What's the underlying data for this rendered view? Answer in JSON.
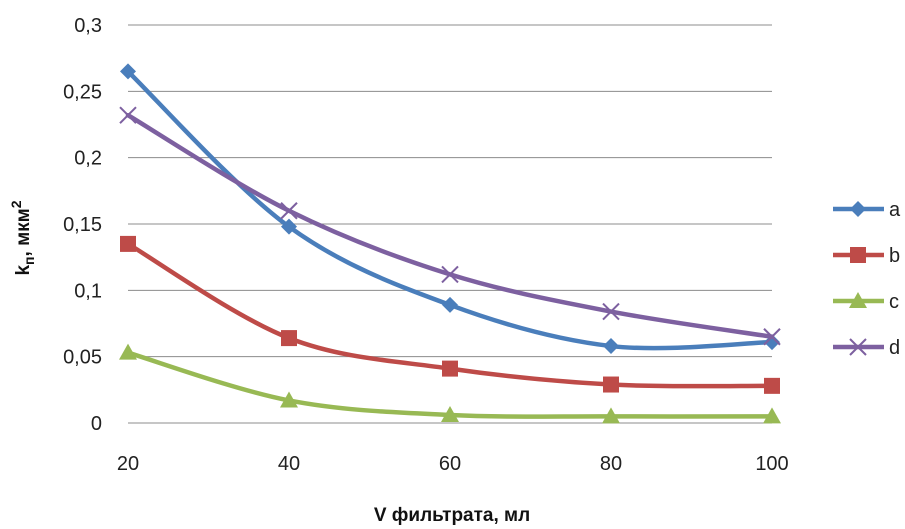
{
  "chart_data": {
    "type": "line",
    "title": "",
    "xlabel": "V фильтрата, мл",
    "ylabel_main": "k",
    "ylabel_sub": "п",
    "ylabel_rest": ", мкм",
    "ylabel_sup": "2",
    "x": [
      20,
      40,
      60,
      80,
      100
    ],
    "x_ticks": [
      "20",
      "40",
      "60",
      "80",
      "100"
    ],
    "y_ticks": [
      "0",
      "0,05",
      "0,1",
      "0,15",
      "0,2",
      "0,25",
      "0,3"
    ],
    "y_tick_values": [
      0,
      0.05,
      0.1,
      0.15,
      0.2,
      0.25,
      0.3
    ],
    "ylim": [
      0,
      0.3
    ],
    "grid": true,
    "legend_position": "right",
    "series": [
      {
        "name": "a",
        "values": [
          0.265,
          0.148,
          0.089,
          0.058,
          0.061
        ],
        "color": "#4a7ebb",
        "marker": "diamond"
      },
      {
        "name": "b",
        "values": [
          0.135,
          0.064,
          0.041,
          0.029,
          0.028
        ],
        "color": "#be4b48",
        "marker": "square"
      },
      {
        "name": "c",
        "values": [
          0.053,
          0.017,
          0.006,
          0.005,
          0.005
        ],
        "color": "#98b954",
        "marker": "triangle"
      },
      {
        "name": "d",
        "values": [
          0.232,
          0.16,
          0.112,
          0.084,
          0.065
        ],
        "color": "#7d60a0",
        "marker": "x"
      }
    ]
  }
}
